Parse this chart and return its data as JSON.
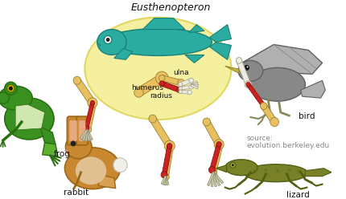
{
  "title": "Eusthenopteron",
  "labels": {
    "frog": "frog",
    "rabbit": "rabbit",
    "bird": "bird",
    "lizard": "lizard",
    "humerus": "humerus",
    "ulna": "ulna",
    "radius": "radius",
    "source_line1": "source:",
    "source_line2": "evolution.berkeley.edu"
  },
  "colors": {
    "background": "#ffffff",
    "ellipse_fill": "#f5f0a0",
    "ellipse_edge": "#e0d860",
    "fish_body": "#2aada0",
    "fish_edge": "#1a8078",
    "fish_fin": "#2aada0",
    "bone_tan": "#e8c060",
    "bone_tan2": "#d4a840",
    "bone_red": "#cc2222",
    "bone_red2": "#dd4444",
    "bone_white": "#eeebe0",
    "bone_white2": "#ddd8c8",
    "frog_dark": "#2a7010",
    "frog_mid": "#3a9020",
    "frog_light": "#60b030",
    "rabbit_dark": "#9a6818",
    "rabbit_mid": "#c88830",
    "rabbit_light": "#d8a050",
    "bird_dark": "#606060",
    "bird_mid": "#888888",
    "bird_light": "#b0b0b0",
    "bird_wing_light": "#c8c8c8",
    "lizard_dark": "#506010",
    "lizard_mid": "#788028",
    "lizard_light": "#90a038",
    "text_label": "#111111",
    "text_source": "#888888",
    "text_title": "#111111"
  },
  "figsize": [
    4.3,
    2.48
  ],
  "dpi": 100
}
